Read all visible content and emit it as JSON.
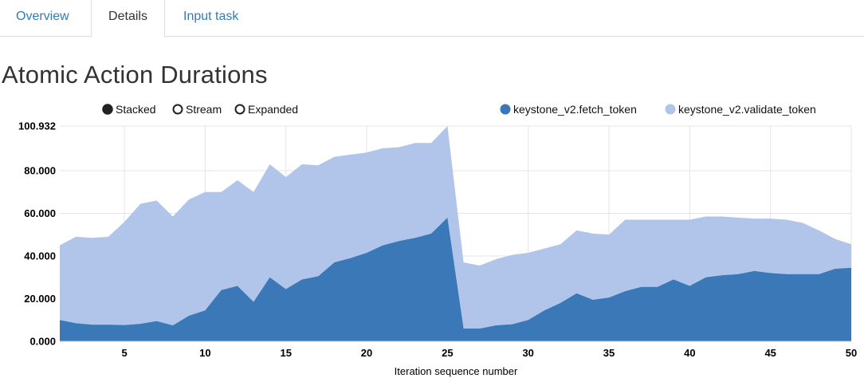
{
  "tabs": [
    {
      "label": "Overview",
      "active": false
    },
    {
      "label": "Details",
      "active": true
    },
    {
      "label": "Input task",
      "active": false
    }
  ],
  "page_title": "Atomic Action Durations",
  "controls": [
    {
      "label": "Stacked",
      "selected": true
    },
    {
      "label": "Stream",
      "selected": false
    },
    {
      "label": "Expanded",
      "selected": false
    }
  ],
  "colors": {
    "link": "#337ab7",
    "series_1": "#3b78b8",
    "series_2": "#b1c5ea"
  },
  "chart_data": {
    "type": "area",
    "stacked": true,
    "title": "",
    "xlabel": "Iteration sequence number",
    "ylabel": "",
    "xlim": [
      1,
      50
    ],
    "ylim": [
      0,
      100.932
    ],
    "x_ticks": [
      "5",
      "10",
      "15",
      "20",
      "25",
      "30",
      "35",
      "40",
      "45",
      "50"
    ],
    "y_ticks": [
      "0.000",
      "20.000",
      "40.000",
      "60.000",
      "80.000",
      "100.932"
    ],
    "grid": true,
    "legend_position": "top-right",
    "x": [
      1,
      2,
      3,
      4,
      5,
      6,
      7,
      8,
      9,
      10,
      11,
      12,
      13,
      14,
      15,
      16,
      17,
      18,
      19,
      20,
      21,
      22,
      23,
      24,
      25,
      26,
      27,
      28,
      29,
      30,
      31,
      32,
      33,
      34,
      35,
      36,
      37,
      38,
      39,
      40,
      41,
      42,
      43,
      44,
      45,
      46,
      47,
      48,
      49,
      50
    ],
    "series": [
      {
        "name": "keystone_v2.fetch_token",
        "values": [
          10,
          8.5,
          7.8,
          7.8,
          7.6,
          8.2,
          9.5,
          7.5,
          12,
          14.5,
          24,
          26,
          18.5,
          30,
          24.5,
          29,
          30.5,
          37,
          39,
          41.5,
          45,
          47,
          48.5,
          50.5,
          58,
          6,
          6,
          7.5,
          8,
          10,
          14.5,
          18,
          22.5,
          19.5,
          20.5,
          23.5,
          25.5,
          25.5,
          29,
          26,
          30,
          31,
          31.5,
          33,
          32,
          31.5,
          31.5,
          31.5,
          34,
          34.5
        ]
      },
      {
        "name": "keystone_v2.validate_token",
        "values": [
          35,
          40.5,
          40.7,
          41.2,
          48.4,
          56.3,
          56.5,
          51,
          54.5,
          55.5,
          46,
          49.5,
          51.5,
          53,
          52.5,
          54,
          52,
          49.5,
          48.5,
          47,
          45.5,
          44,
          44.5,
          42.5,
          42.9,
          31,
          29.5,
          31,
          32.5,
          31.5,
          29,
          27.5,
          29.5,
          31,
          29.5,
          33.5,
          31.5,
          31.5,
          28,
          31,
          28.5,
          27.5,
          26.5,
          24.5,
          25.5,
          25.5,
          24,
          20.5,
          14,
          11
        ]
      }
    ]
  }
}
